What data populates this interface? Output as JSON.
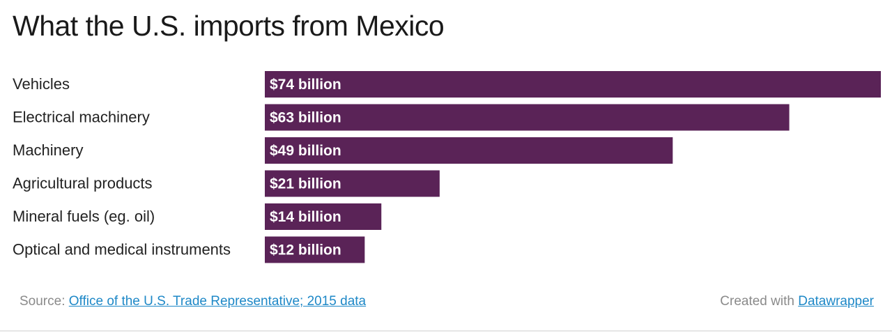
{
  "chart_data": {
    "type": "bar",
    "orientation": "horizontal",
    "title": "What the U.S. imports from Mexico",
    "categories": [
      "Vehicles",
      "Electrical machinery",
      "Machinery",
      "Agricultural products",
      "Mineral fuels (eg. oil)",
      "Optical and medical instruments"
    ],
    "values": [
      74,
      63,
      49,
      21,
      14,
      12
    ],
    "value_labels": [
      "$74 billion",
      "$63 billion",
      "$49 billion",
      "$21 billion",
      "$14 billion",
      "$12 billion"
    ],
    "unit": "billion USD",
    "xlim": [
      0,
      74
    ],
    "grid": false,
    "legend": "none",
    "bar_color": "#5a2357"
  },
  "footer": {
    "source_prefix": "Source:",
    "source_link": "Office of the U.S. Trade Representative; 2015 data",
    "credit_prefix": "Created with",
    "credit_link": "Datawrapper"
  },
  "colors": {
    "bar": "#5a2357",
    "link": "#1e88c7",
    "footer_text": "#8a8a8a"
  }
}
